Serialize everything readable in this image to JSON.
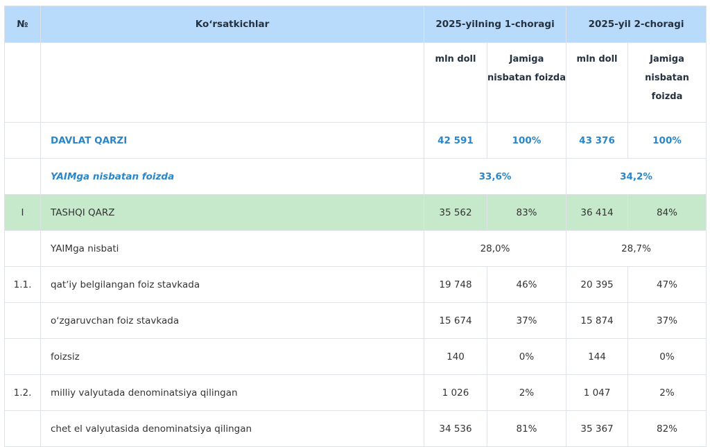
{
  "header": {
    "no": "№",
    "indicators": "Koʻrsatkichlar",
    "q1": "2025-yilning 1-choragi",
    "q2": "2025-yil 2-choragi"
  },
  "subheader": {
    "q1_unit": "mln doll",
    "q1_share": "Jamiga nisbatan foizda",
    "q2_unit": "mln doll",
    "q2_share": "Jamiga nisbatan foizda"
  },
  "rows": [
    {
      "no": "",
      "label": "DAVLAT QARZI",
      "q1_val": "42 591",
      "q1_pct": "100%",
      "q2_val": "43 376",
      "q2_pct": "100%"
    },
    {
      "no": "",
      "label": "YAIMga nisbatan foizda",
      "q1_merged": "33,6%",
      "q2_merged": "34,2%"
    },
    {
      "no": "I",
      "label": "TASHQI QARZ",
      "q1_val": "35 562",
      "q1_pct": "83%",
      "q2_val": "36 414",
      "q2_pct": "84%"
    },
    {
      "no": "",
      "label": "YAIMga nisbati",
      "q1_merged": "28,0%",
      "q2_merged": "28,7%"
    },
    {
      "no": "1.1.",
      "label": "qatʼiy belgilangan foiz stavkada",
      "q1_val": "19 748",
      "q1_pct": "46%",
      "q2_val": "20 395",
      "q2_pct": "47%"
    },
    {
      "no": "",
      "label": "oʻzgaruvchan foiz stavkada",
      "q1_val": "15 674",
      "q1_pct": "37%",
      "q2_val": "15 874",
      "q2_pct": "37%"
    },
    {
      "no": "",
      "label": "foizsiz",
      "q1_val": "140",
      "q1_pct": "0%",
      "q2_val": "144",
      "q2_pct": "0%"
    },
    {
      "no": "1.2.",
      "label": "milliy valyutada denominatsiya qilingan",
      "q1_val": "1 026",
      "q1_pct": "2%",
      "q2_val": "1 047",
      "q2_pct": "2%"
    },
    {
      "no": "",
      "label": "chet el valyutasida denominatsiya qilingan",
      "q1_val": "34 536",
      "q1_pct": "81%",
      "q2_val": "35 367",
      "q2_pct": "82%"
    }
  ]
}
